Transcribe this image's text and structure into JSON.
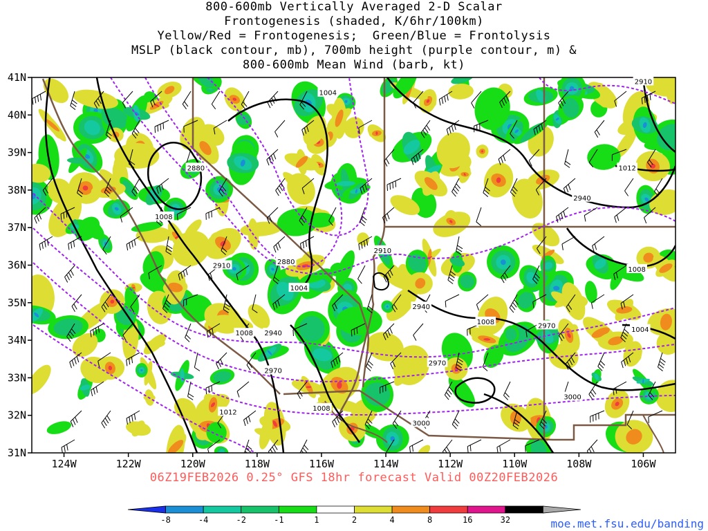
{
  "title": {
    "lines": [
      "800-600mb Vertically Averaged 2-D Scalar",
      "Frontogenesis (shaded, K/6hr/100km)",
      "Yellow/Red = Frontogenesis;  Green/Blue = Frontolysis",
      "MSLP (black contour, mb), 700mb height (purple contour, m) &",
      "800-600mb Mean Wind (barb, kt)"
    ]
  },
  "axes": {
    "lat_labels": [
      "41N",
      "40N",
      "39N",
      "38N",
      "37N",
      "36N",
      "35N",
      "34N",
      "33N",
      "32N",
      "31N"
    ],
    "lat_values": [
      41,
      40,
      39,
      38,
      37,
      36,
      35,
      34,
      33,
      32,
      31
    ],
    "lon_labels": [
      "124W",
      "122W",
      "120W",
      "118W",
      "116W",
      "114W",
      "112W",
      "110W",
      "108W",
      "106W"
    ],
    "lon_values": [
      -124,
      -122,
      -120,
      -118,
      -116,
      -114,
      -112,
      -110,
      -108,
      -106
    ],
    "lat_range": [
      31,
      41
    ],
    "lon_range": [
      -125,
      -105
    ]
  },
  "mslp_labels": [
    {
      "text": "1004",
      "lon": -115.8,
      "lat": 40.6
    },
    {
      "text": "1008",
      "lon": -120.9,
      "lat": 37.3
    },
    {
      "text": "1004",
      "lon": -116.7,
      "lat": 35.4
    },
    {
      "text": "1008",
      "lon": -118.4,
      "lat": 34.2
    },
    {
      "text": "1012",
      "lon": -118.9,
      "lat": 32.1
    },
    {
      "text": "1008",
      "lon": -116.0,
      "lat": 32.2
    },
    {
      "text": "1008",
      "lon": -110.9,
      "lat": 34.5
    },
    {
      "text": "1012",
      "lon": -106.5,
      "lat": 38.6
    },
    {
      "text": "1008",
      "lon": -106.2,
      "lat": 35.9
    },
    {
      "text": "1004",
      "lon": -106.1,
      "lat": 34.3
    }
  ],
  "height_labels": [
    {
      "text": "2880",
      "lon": -119.9,
      "lat": 38.6
    },
    {
      "text": "2910",
      "lon": -119.1,
      "lat": 36.0
    },
    {
      "text": "2880",
      "lon": -117.1,
      "lat": 36.1
    },
    {
      "text": "2940",
      "lon": -117.5,
      "lat": 34.2
    },
    {
      "text": "2970",
      "lon": -117.5,
      "lat": 33.2
    },
    {
      "text": "2910",
      "lon": -114.1,
      "lat": 36.4
    },
    {
      "text": "2940",
      "lon": -112.9,
      "lat": 34.9
    },
    {
      "text": "2970",
      "lon": -112.4,
      "lat": 33.4
    },
    {
      "text": "3000",
      "lon": -112.9,
      "lat": 31.8
    },
    {
      "text": "2940",
      "lon": -107.9,
      "lat": 37.8
    },
    {
      "text": "2970",
      "lon": -109.0,
      "lat": 34.4
    },
    {
      "text": "3000",
      "lon": -108.2,
      "lat": 32.5
    },
    {
      "text": "2910",
      "lon": -106.0,
      "lat": 40.9
    }
  ],
  "valid_text": "06Z19FEB2026 0.25° GFS 18hr forecast Valid 00Z20FEB2026",
  "colorbar": {
    "labels": [
      "-8",
      "-4",
      "-2",
      "-1",
      "1",
      "2",
      "4",
      "8",
      "16",
      "32"
    ],
    "colors": [
      "#1a2fe8",
      "#1a8fd6",
      "#14c8a0",
      "#17c36a",
      "#17dd17",
      "#ffffff",
      "#dddd33",
      "#f08c1e",
      "#f03c3c",
      "#e0148c",
      "#000000",
      "#a9a9a9"
    ]
  },
  "credit": "moe.met.fsu.edu/banding",
  "colors": {
    "mslp": "#000000",
    "height": "#a020f0",
    "border": "#7b5a45",
    "valid_text": "#ff5a5a",
    "credit": "#2a5cff"
  }
}
